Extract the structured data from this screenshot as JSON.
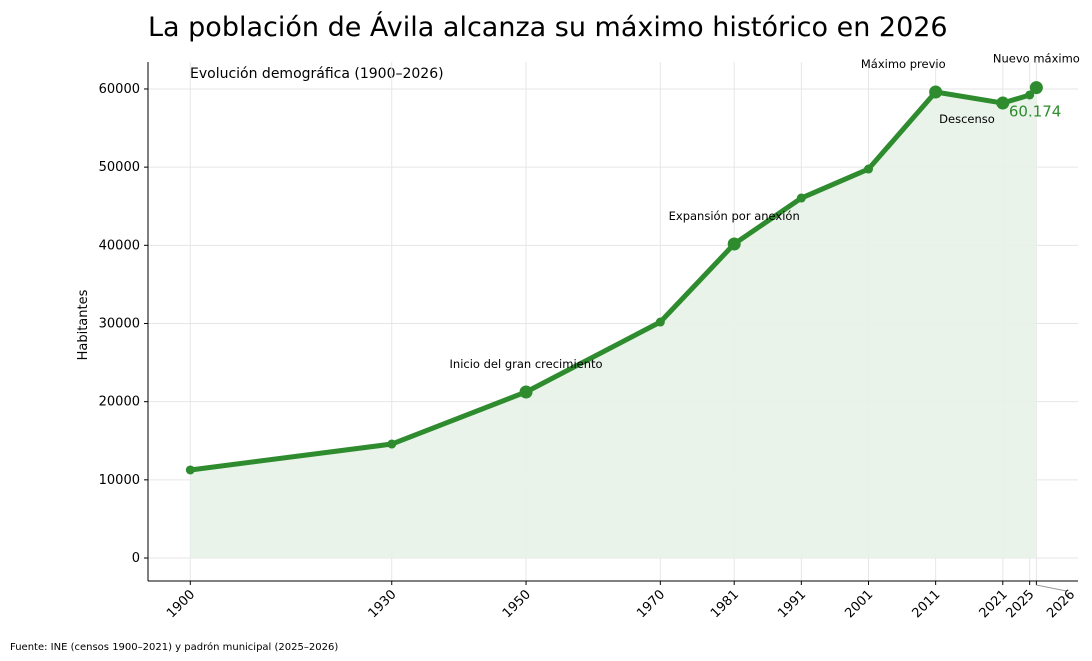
{
  "chart_data": {
    "type": "line",
    "title": "La población de Ávila alcanza su máximo histórico en 2026",
    "subtitle": "Evolución demográfica (1900–2026)",
    "xlabel": "",
    "ylabel": "Habitantes",
    "source": "Fuente: INE (censos 1900–2021) y padrón municipal (2025–2026)",
    "x": [
      1900,
      1930,
      1950,
      1970,
      1981,
      1991,
      2001,
      2011,
      2021,
      2025,
      2026
    ],
    "values": [
      11260,
      14580,
      21240,
      30190,
      40170,
      46050,
      49760,
      59610,
      58200,
      59230,
      60174
    ],
    "x_tick_labels": [
      "1900",
      "1930",
      "1950",
      "1970",
      "1981",
      "1991",
      "2001",
      "2011",
      "2021",
      "2025",
      "2026"
    ],
    "y_ticks": [
      0,
      10000,
      20000,
      30000,
      40000,
      50000,
      60000
    ],
    "y_tick_labels": [
      "0",
      "10000",
      "20000",
      "30000",
      "40000",
      "50000",
      "60000"
    ],
    "xlim": [
      1893.7,
      2032.2
    ],
    "ylim": [
      -2940,
      63450
    ],
    "grid": true,
    "highlighted_years": [
      1950,
      1981,
      2011,
      2021,
      2026
    ],
    "annotations": [
      {
        "year": 1950,
        "text": "Inicio del gran crecimiento"
      },
      {
        "year": 1981,
        "text": "Expansión por anexión"
      },
      {
        "year": 2011,
        "text": "Máximo previo"
      },
      {
        "year": 2021,
        "text": "Descenso"
      },
      {
        "year": 2026,
        "text": "Nuevo máximo"
      }
    ],
    "value_label": "60.174",
    "colors": {
      "line": "#2e8b2e",
      "fill": "#e7f2e7",
      "grid": "#e6e6e6"
    }
  }
}
